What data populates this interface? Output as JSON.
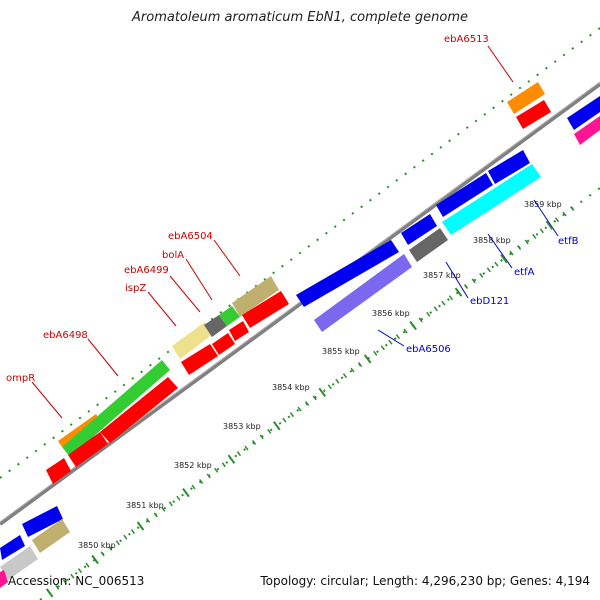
{
  "title": "Aromatoleum aromaticum EbN1, complete genome",
  "accession": "Accession: NC_006513",
  "summary": "Topology: circular; Length: 4,296,230 bp; Genes: 4,194",
  "colors": {
    "backbone": "#808080",
    "tick": "#2e8b2e",
    "label_forward": "#cc0000",
    "label_reverse": "#0000cc",
    "red": "#ff0000",
    "blue": "#0000ee",
    "green": "#33cc33",
    "orange": "#ff8c00",
    "khaki": "#c0b070",
    "paleyellow": "#eee08c",
    "gray": "#666666",
    "lightgray": "#c8c8c8",
    "cyan": "#00ffff",
    "slateblue": "#7b68ee",
    "pink": "#ff1493"
  },
  "ticks": [
    {
      "label": "3850 kbp"
    },
    {
      "label": "3851 kbp"
    },
    {
      "label": "3852 kbp"
    },
    {
      "label": "3853 kbp"
    },
    {
      "label": "3854 kbp"
    },
    {
      "label": "3855 kbp"
    },
    {
      "label": "3856 kbp"
    },
    {
      "label": "3857 kbp"
    },
    {
      "label": "3858 kbp"
    },
    {
      "label": "3859 kbp"
    }
  ],
  "gene_labels_forward": [
    {
      "name": "ompR"
    },
    {
      "name": "ebA6498"
    },
    {
      "name": "ispZ"
    },
    {
      "name": "ebA6499"
    },
    {
      "name": "bolA"
    },
    {
      "name": "ebA6504"
    },
    {
      "name": "ebA6513"
    }
  ],
  "gene_labels_reverse": [
    {
      "name": "ebA6506"
    },
    {
      "name": "ebD121"
    },
    {
      "name": "etfA"
    },
    {
      "name": "etfB"
    }
  ]
}
